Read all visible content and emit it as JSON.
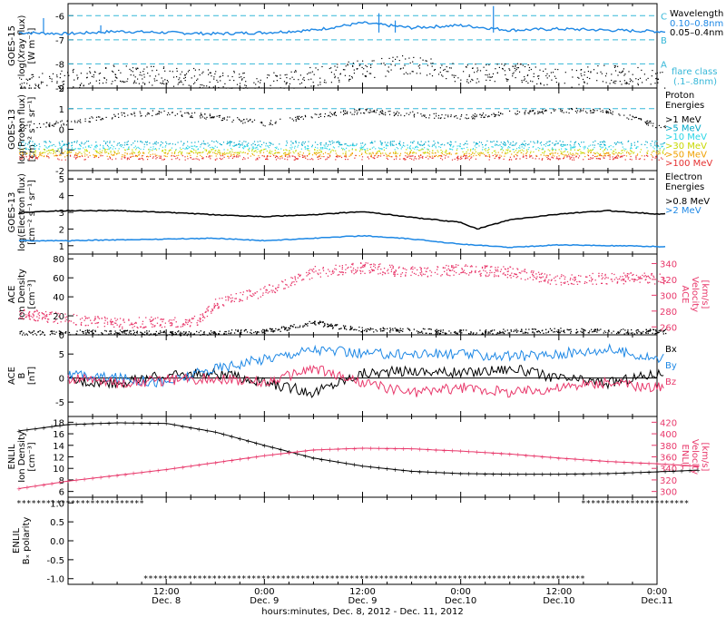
{
  "colors": {
    "black": "#000000",
    "blue": "#1e88e5",
    "cyan": "#00bcd4",
    "pink": "#e8386b",
    "dashed_cyan": "#35b7d8",
    "proton_gt1": "#000000",
    "proton_gt5": "#00a8c8",
    "proton_gt10": "#2bd6e6",
    "proton_gt30": "#c8d800",
    "proton_gt50": "#f0a000",
    "proton_gt100": "#e53030"
  },
  "x_axis": {
    "title": "hours:minutes, Dec. 8, 2012 - Dec. 11, 2012",
    "range_hours": [
      -12,
      60
    ],
    "ticks": [
      {
        "hour": 0,
        "time": "12:00",
        "date": "Dec. 8"
      },
      {
        "hour": 12,
        "time": "0:00",
        "date": "Dec. 9"
      },
      {
        "hour": 24,
        "time": "12:00",
        "date": "Dec. 9"
      },
      {
        "hour": 36,
        "time": "0:00",
        "date": "Dec.10"
      },
      {
        "hour": 48,
        "time": "12:00",
        "date": "Dec.10"
      },
      {
        "hour": 60,
        "time": "0:00",
        "date": "Dec.11"
      }
    ]
  },
  "chart_data": [
    {
      "type": "line",
      "panel": "xray",
      "ylabel_lines": [
        "GOES-15",
        "log(Xray flux)",
        "[W m⁻²]"
      ],
      "ylim": [
        -9,
        -5.5
      ],
      "yticks": [
        "-6",
        "-7",
        "-8",
        "-9"
      ],
      "ytick_values": [
        -6,
        -7,
        -8,
        -9
      ],
      "flare_levels": [
        {
          "label": "C",
          "value": -6
        },
        {
          "label": "B",
          "value": -7
        },
        {
          "label": "A",
          "value": -8
        }
      ],
      "legend": {
        "title": "Wavelength",
        "items": [
          "0.10–0.8nm",
          "0.05–0.4nm"
        ],
        "note1": "flare class",
        "note2": "(.1–.8nm)"
      },
      "series": [
        {
          "name": "0.10–0.8nm",
          "color_key": "blue",
          "x": [
            -18,
            -12,
            -6,
            0,
            6,
            12,
            18,
            24,
            30,
            36,
            42,
            48,
            54,
            60
          ],
          "values": [
            -6.7,
            -6.75,
            -6.65,
            -6.7,
            -6.75,
            -6.7,
            -6.6,
            -6.3,
            -6.5,
            -6.4,
            -6.6,
            -6.55,
            -6.6,
            -6.65
          ]
        },
        {
          "name": "0.05–0.4nm",
          "color_key": "black",
          "x": [
            -18,
            -12,
            -6,
            0,
            6,
            12,
            18,
            24,
            30,
            36,
            42,
            48,
            54,
            60
          ],
          "values": [
            -8.9,
            -8.6,
            -8.4,
            -8.5,
            -8.6,
            -8.8,
            -8.5,
            -8.2,
            -8.0,
            -8.4,
            -8.3,
            -8.6,
            -8.4,
            -8.6
          ]
        }
      ]
    },
    {
      "type": "scatter",
      "panel": "proton",
      "ylabel_lines": [
        "GOES-13",
        "log(Proton flux)",
        "[cm⁻² s⁻¹ sr⁻¹]"
      ],
      "ylim": [
        -2,
        2
      ],
      "yticks": [
        "2",
        "1",
        "0",
        "-1",
        "-2"
      ],
      "ytick_values": [
        2,
        1,
        0,
        -1,
        -2
      ],
      "threshold": 1,
      "legend": {
        "title1": "Proton",
        "title2": "Energies",
        "items": [
          ">1 MeV",
          ">5 MeV",
          ">10 MeV",
          ">30 MeV",
          ">50 MeV",
          ">100 MeV"
        ]
      },
      "series": [
        {
          "name": ">1 MeV",
          "color_key": "proton_gt1",
          "x": [
            -18,
            -12,
            -6,
            0,
            6,
            12,
            18,
            24,
            30,
            36,
            42,
            48,
            54,
            60
          ],
          "values": [
            0.1,
            0.35,
            0.7,
            0.85,
            0.6,
            0.3,
            0.7,
            0.9,
            0.75,
            0.6,
            0.8,
            0.95,
            0.9,
            0.2
          ]
        },
        {
          "name": ">5 MeV",
          "color_key": "proton_gt5",
          "x": [
            -18,
            60
          ],
          "values": [
            -0.65,
            -0.65
          ]
        },
        {
          "name": ">10 MeV",
          "color_key": "proton_gt10",
          "x": [
            -18,
            60
          ],
          "values": [
            -0.85,
            -0.85
          ]
        },
        {
          "name": ">30 MeV",
          "color_key": "proton_gt30",
          "x": [
            -18,
            60
          ],
          "values": [
            -1.05,
            -1.05
          ]
        },
        {
          "name": ">50 MeV",
          "color_key": "proton_gt50",
          "x": [
            -18,
            60
          ],
          "values": [
            -1.2,
            -1.2
          ]
        },
        {
          "name": ">100 MeV",
          "color_key": "proton_gt100",
          "x": [
            -18,
            60
          ],
          "values": [
            -1.35,
            -1.35
          ]
        }
      ]
    },
    {
      "type": "line",
      "panel": "electron",
      "ylabel_lines": [
        "GOES-13",
        "log(Electron flux)",
        "[cm⁻² s⁻¹ sr⁻¹]"
      ],
      "ylim": [
        0.5,
        5.5
      ],
      "yticks": [
        "5",
        "4",
        "3",
        "2",
        "1"
      ],
      "ytick_values": [
        5,
        4,
        3,
        2,
        1
      ],
      "threshold": 5,
      "legend": {
        "title1": "Electron",
        "title2": "Energies",
        "items": [
          ">0.8 MeV",
          ">2 MeV"
        ]
      },
      "series": [
        {
          "name": ">0.8 MeV",
          "color_key": "black",
          "x": [
            -18,
            -12,
            -6,
            0,
            6,
            12,
            18,
            24,
            30,
            36,
            38,
            42,
            48,
            54,
            60
          ],
          "values": [
            3.0,
            3.1,
            3.1,
            3.0,
            2.85,
            2.75,
            2.85,
            3.05,
            2.7,
            2.4,
            2.0,
            2.55,
            2.9,
            3.1,
            2.9
          ]
        },
        {
          "name": ">2 MeV",
          "color_key": "blue",
          "x": [
            -18,
            -12,
            -6,
            0,
            6,
            12,
            18,
            24,
            30,
            36,
            42,
            48,
            54,
            60
          ],
          "values": [
            1.3,
            1.3,
            1.35,
            1.4,
            1.45,
            1.3,
            1.45,
            1.6,
            1.4,
            1.1,
            0.9,
            1.05,
            1.0,
            0.95
          ]
        }
      ]
    },
    {
      "type": "scatter",
      "panel": "ace_plasma",
      "ylabel_lines": [
        "ACE",
        "Ion Density",
        "[cm⁻³]"
      ],
      "ylabel_right_lines": [
        "ACE",
        "Velocity",
        "[km/s]"
      ],
      "ylim": [
        0,
        85
      ],
      "yticks": [
        "80",
        "60",
        "40",
        "20",
        "0"
      ],
      "ytick_values": [
        80,
        60,
        40,
        20,
        0
      ],
      "ylim_right": [
        250,
        352
      ],
      "yticks_right": [
        "340",
        "320",
        "300",
        "280",
        "260"
      ],
      "ytick_values_right": [
        340,
        320,
        300,
        280,
        260
      ],
      "series": [
        {
          "name": "density",
          "color_key": "black",
          "axis": "left",
          "x": [
            -18,
            -12,
            -6,
            0,
            6,
            12,
            15,
            18,
            20,
            24,
            30,
            36,
            42,
            48,
            54,
            60
          ],
          "values": [
            2,
            3,
            3,
            2,
            3,
            4,
            8,
            14,
            10,
            6,
            5,
            3,
            4,
            5,
            4,
            4
          ]
        },
        {
          "name": "velocity",
          "color_key": "pink",
          "axis": "right",
          "x": [
            -18,
            -12,
            -6,
            0,
            4,
            6,
            8,
            12,
            18,
            24,
            30,
            36,
            42,
            48,
            54,
            60
          ],
          "values": [
            278,
            270,
            265,
            267,
            268,
            290,
            295,
            305,
            330,
            335,
            330,
            333,
            330,
            320,
            322,
            322
          ]
        }
      ]
    },
    {
      "type": "line",
      "panel": "ace_mag",
      "ylabel_lines": [
        "ACE",
        "B",
        "[nT]"
      ],
      "ylim": [
        -8,
        9
      ],
      "yticks": [
        "5",
        "0",
        "-5"
      ],
      "ytick_values": [
        5,
        0,
        -5
      ],
      "legend": {
        "items": [
          "Bx",
          "By",
          "Bz"
        ]
      },
      "series": [
        {
          "name": "Bx",
          "color_key": "black",
          "x": [
            -18,
            -12,
            -6,
            0,
            6,
            12,
            18,
            24,
            30,
            36,
            42,
            48,
            54,
            60
          ],
          "values": [
            0,
            -0.5,
            -1,
            0.5,
            1,
            -1,
            -3,
            1,
            1.5,
            1,
            2,
            0,
            -1,
            1
          ]
        },
        {
          "name": "By",
          "color_key": "blue",
          "x": [
            -18,
            -12,
            -6,
            0,
            6,
            12,
            18,
            24,
            30,
            36,
            42,
            48,
            54,
            60
          ],
          "values": [
            1,
            0.5,
            0,
            -1,
            2,
            4,
            6,
            5,
            5,
            5,
            4.5,
            5,
            6,
            4
          ]
        },
        {
          "name": "Bz",
          "color_key": "pink",
          "x": [
            -18,
            -12,
            -6,
            0,
            6,
            12,
            18,
            24,
            30,
            36,
            42,
            48,
            54,
            60
          ],
          "values": [
            0,
            0,
            -1,
            -0.5,
            0,
            -1,
            2,
            -1,
            -3,
            -2,
            -3,
            -2,
            -1,
            -2
          ]
        }
      ]
    },
    {
      "type": "line",
      "panel": "enlil_plasma",
      "ylabel_lines": [
        "ENLIL",
        "Ion Density",
        "[cm⁻³]"
      ],
      "ylabel_right_lines": [
        "ENLIL",
        "Velocity",
        "[km/s]"
      ],
      "ylim": [
        5,
        19
      ],
      "yticks": [
        "18",
        "16",
        "14",
        "12",
        "10",
        "8",
        "6"
      ],
      "ytick_values": [
        18,
        16,
        14,
        12,
        10,
        8,
        6
      ],
      "ylim_right": [
        290,
        430
      ],
      "yticks_right": [
        "420",
        "400",
        "380",
        "360",
        "340",
        "320",
        "300"
      ],
      "ytick_values_right": [
        420,
        400,
        380,
        360,
        340,
        320,
        300
      ],
      "series": [
        {
          "name": "density",
          "color_key": "black",
          "axis": "left",
          "x": [
            -18,
            -12,
            -6,
            0,
            6,
            12,
            18,
            24,
            30,
            36,
            42,
            48,
            54,
            60,
            65
          ],
          "values": [
            16.5,
            17.6,
            17.9,
            17.8,
            16.3,
            14.0,
            11.8,
            10.4,
            9.5,
            9.1,
            9.0,
            9.0,
            9.1,
            9.4,
            9.7
          ]
        },
        {
          "name": "velocity",
          "color_key": "pink",
          "axis": "right",
          "x": [
            -18,
            -12,
            -6,
            0,
            6,
            12,
            18,
            24,
            30,
            36,
            42,
            48,
            54,
            60,
            65
          ],
          "values": [
            305,
            318,
            328,
            338,
            350,
            362,
            372,
            375,
            374,
            370,
            365,
            358,
            352,
            348,
            344
          ]
        }
      ]
    },
    {
      "type": "scatter",
      "panel": "enlil_polarity",
      "ylabel_lines": [
        "ENLIL",
        "Bₓ polarity"
      ],
      "ylim": [
        -1.15,
        1.15
      ],
      "yticks": [
        "1.0",
        "0.5",
        "0.0",
        "-0.5",
        "-1.0"
      ],
      "ytick_values": [
        1.0,
        0.5,
        0.0,
        -0.5,
        -1.0
      ],
      "series": [
        {
          "name": "positive",
          "color_key": "black",
          "x_range": [
            -18,
            -2.5
          ],
          "value": 1
        },
        {
          "name": "negative",
          "color_key": "black",
          "x_range": [
            -2.5,
            51
          ],
          "value": -1
        },
        {
          "name": "positive",
          "color_key": "black",
          "x_range": [
            51,
            64
          ],
          "value": 1
        }
      ]
    }
  ]
}
